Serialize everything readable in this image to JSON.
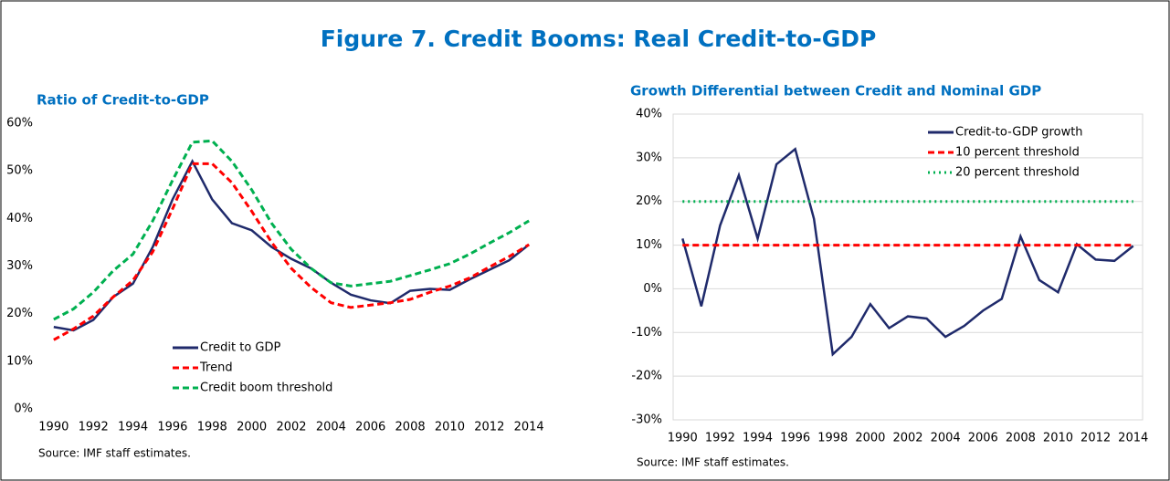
{
  "title": "Figure 7. Credit Booms: Real Credit-to-GDP",
  "chart_data": [
    {
      "type": "line",
      "title": "Ratio of Credit-to-GDP",
      "source": "Source: IMF staff estimates.",
      "x": [
        1990,
        1991,
        1992,
        1993,
        1994,
        1995,
        1996,
        1997,
        1998,
        1999,
        2000,
        2001,
        2002,
        2003,
        2004,
        2005,
        2006,
        2007,
        2008,
        2009,
        2010,
        2011,
        2012,
        2013,
        2014
      ],
      "xlim": [
        1989.5,
        2014.5
      ],
      "xticks": [
        1990,
        1992,
        1994,
        1996,
        1998,
        2000,
        2002,
        2004,
        2006,
        2008,
        2010,
        2012,
        2014
      ],
      "ylim": [
        0,
        60
      ],
      "yticks": [
        {
          "value": 0,
          "label": "0%"
        },
        {
          "value": 10,
          "label": "10%"
        },
        {
          "value": 20,
          "label": "20%"
        },
        {
          "value": 30,
          "label": "30%"
        },
        {
          "value": 40,
          "label": "40%"
        },
        {
          "value": 50,
          "label": "50%"
        },
        {
          "value": 60,
          "label": "60%"
        }
      ],
      "grid": false,
      "legend": "lower center",
      "series": [
        {
          "name": "Credit to GDP",
          "color": "#1f2a6b",
          "style": "solid",
          "values": [
            17.2,
            16.5,
            18.7,
            23.5,
            26.3,
            34,
            44,
            52,
            44,
            39,
            37.5,
            34,
            31.5,
            29.5,
            26.5,
            24,
            22.8,
            22.2,
            24.8,
            25.2,
            25,
            27.2,
            29.2,
            31.2,
            34.5
          ]
        },
        {
          "name": "Trend",
          "color": "#ff0000",
          "style": "dashed",
          "values": [
            14.5,
            16.8,
            19.5,
            23.5,
            27,
            33,
            42,
            51.5,
            51.5,
            47.5,
            41.5,
            35,
            29.5,
            25.5,
            22.3,
            21.3,
            21.8,
            22.3,
            23,
            24.5,
            25.8,
            27.5,
            29.8,
            32,
            34.5
          ]
        },
        {
          "name": "Credit boom threshold",
          "color": "#00b050",
          "style": "dashed",
          "values": [
            18.8,
            21,
            24.5,
            29,
            32.5,
            39.5,
            48,
            56,
            56.3,
            52,
            46,
            39,
            33.5,
            29.5,
            26.5,
            25.8,
            26.3,
            26.8,
            28,
            29.2,
            30.5,
            32.5,
            34.8,
            37,
            39.5
          ]
        }
      ]
    },
    {
      "type": "line",
      "title": "Growth Differential between Credit and Nominal GDP",
      "source": "Source: IMF staff estimates.",
      "x": [
        1990,
        1991,
        1992,
        1993,
        1994,
        1995,
        1996,
        1997,
        1998,
        1999,
        2000,
        2001,
        2002,
        2003,
        2004,
        2005,
        2006,
        2007,
        2008,
        2009,
        2010,
        2011,
        2012,
        2013,
        2014
      ],
      "xlim": [
        1989.5,
        2014.5
      ],
      "xticks": [
        1990,
        1992,
        1994,
        1996,
        1998,
        2000,
        2002,
        2004,
        2006,
        2008,
        2010,
        2012,
        2014
      ],
      "ylim": [
        -30,
        40
      ],
      "yticks": [
        {
          "value": -30,
          "label": "-30%"
        },
        {
          "value": -20,
          "label": "-20%"
        },
        {
          "value": -10,
          "label": "-10%"
        },
        {
          "value": 0,
          "label": "0%"
        },
        {
          "value": 10,
          "label": "10%"
        },
        {
          "value": 20,
          "label": "20%"
        },
        {
          "value": 30,
          "label": "30%"
        },
        {
          "value": 40,
          "label": "40%"
        }
      ],
      "grid": true,
      "legend": "upper right",
      "series": [
        {
          "name": "Credit-to-GDP growth",
          "color": "#1f2a6b",
          "style": "solid",
          "values": [
            11.5,
            -4,
            14.5,
            26,
            11.5,
            28.5,
            32,
            16,
            -15,
            -11,
            -3.5,
            -9,
            -6.3,
            -6.8,
            -11,
            -8.5,
            -5,
            -2.3,
            12,
            2,
            -0.8,
            10.2,
            6.7,
            6.4,
            9.8
          ]
        },
        {
          "name": "10 percent threshold",
          "color": "#ff0000",
          "style": "dashed",
          "values": [
            10,
            10,
            10,
            10,
            10,
            10,
            10,
            10,
            10,
            10,
            10,
            10,
            10,
            10,
            10,
            10,
            10,
            10,
            10,
            10,
            10,
            10,
            10,
            10,
            10
          ]
        },
        {
          "name": "20 percent threshold",
          "color": "#00b050",
          "style": "dotted",
          "values": [
            20,
            20,
            20,
            20,
            20,
            20,
            20,
            20,
            20,
            20,
            20,
            20,
            20,
            20,
            20,
            20,
            20,
            20,
            20,
            20,
            20,
            20,
            20,
            20,
            20
          ]
        }
      ]
    }
  ]
}
